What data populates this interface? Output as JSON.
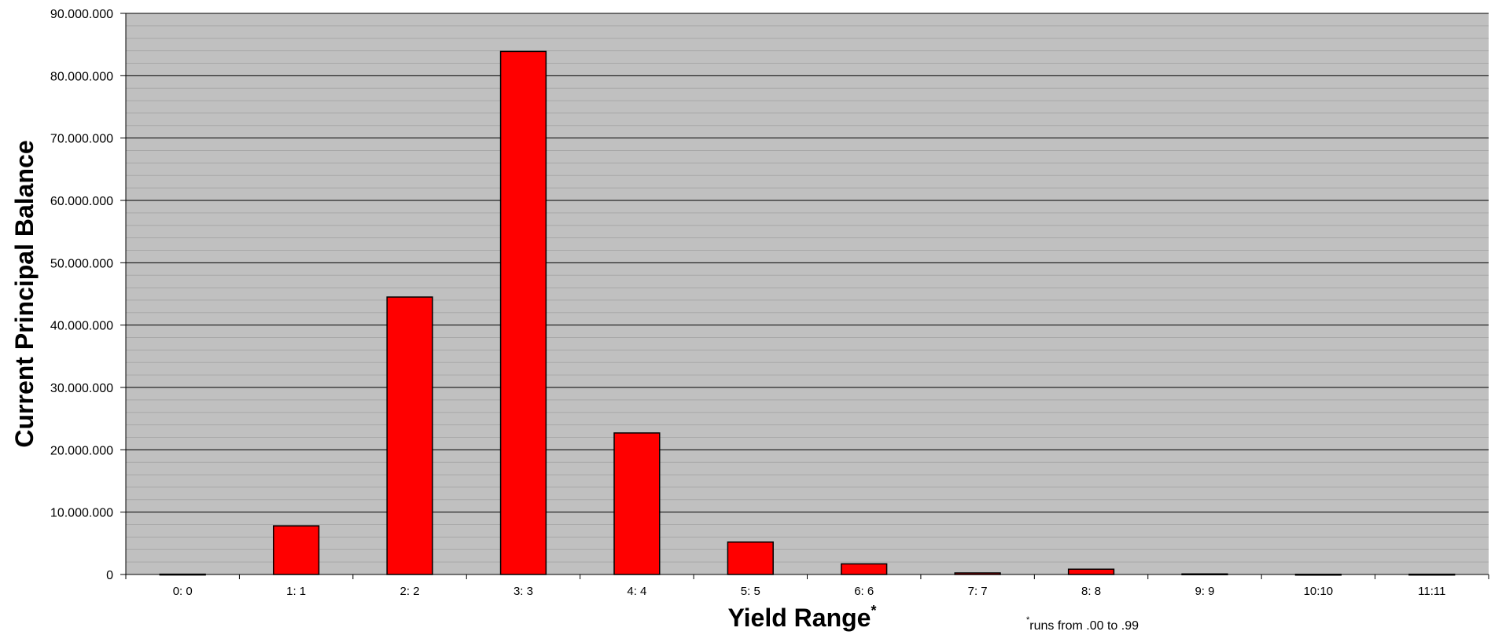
{
  "chart_data": {
    "type": "bar",
    "title": "",
    "xlabel": "Yield Range",
    "xlabel_marker": "*",
    "ylabel": "Current Principal Balance",
    "footnote_marker": "*",
    "footnote": "runs from .00 to .99",
    "categories": [
      "0: 0",
      "1: 1",
      "2: 2",
      "3: 3",
      "4: 4",
      "5: 5",
      "6: 6",
      "7: 7",
      "8: 8",
      "9: 9",
      "10:10",
      "11:11"
    ],
    "values": [
      50000,
      7800000,
      44500000,
      83900000,
      22700000,
      5200000,
      1700000,
      250000,
      850000,
      90000,
      30000,
      40000
    ],
    "ylim": [
      0,
      90000000
    ],
    "y_ticks": [
      {
        "value": 0,
        "label": "0"
      },
      {
        "value": 10000000,
        "label": "10.000.000"
      },
      {
        "value": 20000000,
        "label": "20.000.000"
      },
      {
        "value": 30000000,
        "label": "30.000.000"
      },
      {
        "value": 40000000,
        "label": "40.000.000"
      },
      {
        "value": 50000000,
        "label": "50.000.000"
      },
      {
        "value": 60000000,
        "label": "60.000.000"
      },
      {
        "value": 70000000,
        "label": "70.000.000"
      },
      {
        "value": 80000000,
        "label": "80.000.000"
      },
      {
        "value": 90000000,
        "label": "90.000.000"
      }
    ],
    "minor_grid_step": 2000000,
    "grid": true,
    "legend": "none",
    "colors": {
      "bar": "#ff0000",
      "bar_stroke": "#000000",
      "plot_background": "#c0c0c0",
      "major_grid": "#000000",
      "minor_grid": "#a8a8a8"
    }
  }
}
